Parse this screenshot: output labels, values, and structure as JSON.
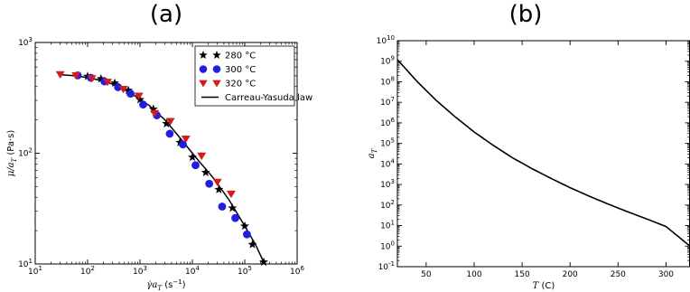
{
  "chart_data": [
    {
      "panel_label": "(a)",
      "type": "scatter",
      "xscale": "log",
      "yscale": "log",
      "xlim": [
        10,
        1000000
      ],
      "ylim": [
        10,
        1000
      ],
      "xlabel": {
        "math": "γ̇a",
        "sub": "T",
        "unit_open": " (s",
        "unit_exp": "−1",
        "unit_close": ")"
      },
      "ylabel": {
        "math": "μ/a",
        "sub": "T",
        "unit": " (Pa·s)"
      },
      "x_ticks": [
        {
          "base": "10",
          "exp": "1"
        },
        {
          "base": "10",
          "exp": "2"
        },
        {
          "base": "10",
          "exp": "3"
        },
        {
          "base": "10",
          "exp": "4"
        },
        {
          "base": "10",
          "exp": "5"
        },
        {
          "base": "10",
          "exp": "6"
        }
      ],
      "y_ticks": [
        {
          "base": "10",
          "exp": "1"
        },
        {
          "base": "10",
          "exp": "2"
        },
        {
          "base": "10",
          "exp": "3"
        }
      ],
      "legend_position": "top-right",
      "series": [
        {
          "name": "280 °C",
          "marker": "star",
          "color": "#000000",
          "x": [
            100,
            180,
            330,
            600,
            1000,
            1800,
            3200,
            5800,
            10000,
            18000,
            32000,
            58000,
            100000,
            140000,
            230000
          ],
          "y": [
            495,
            470,
            430,
            370,
            305,
            250,
            185,
            125,
            92,
            67,
            47,
            32,
            22,
            15,
            10.4
          ]
        },
        {
          "name": "300 °C",
          "marker": "circle",
          "color": "#1f1fdd",
          "x": [
            65,
            115,
            210,
            380,
            660,
            1150,
            2100,
            3700,
            6600,
            11500,
            21000,
            37000,
            66000,
            110000
          ],
          "y": [
            505,
            480,
            445,
            395,
            345,
            275,
            220,
            150,
            120,
            78,
            53,
            33,
            26,
            18.5
          ]
        },
        {
          "name": "320 °C",
          "marker": "triangle-down",
          "color": "#d41c1c",
          "x": [
            30,
            60,
            120,
            240,
            480,
            950,
            1900,
            3800,
            7500,
            15000,
            30000,
            55000
          ],
          "y": [
            515,
            505,
            475,
            440,
            380,
            330,
            230,
            195,
            135,
            95,
            55,
            43
          ]
        },
        {
          "name": "Carreau-Yasuda law",
          "marker": "line",
          "color": "#000000",
          "x": [
            30,
            60,
            100,
            200,
            400,
            800,
            1500,
            3000,
            6000,
            12000,
            25000,
            50000,
            100000,
            160000,
            230000
          ],
          "y": [
            512,
            500,
            482,
            450,
            400,
            330,
            270,
            200,
            135,
            90,
            60,
            38,
            22,
            15,
            10.4
          ]
        }
      ]
    },
    {
      "panel_label": "(b)",
      "type": "line",
      "xscale": "linear",
      "yscale": "log",
      "xlim": [
        20,
        325
      ],
      "ylim": [
        0.1,
        10000000000
      ],
      "xlabel": {
        "math": "T",
        "unit": " (C)"
      },
      "ylabel": {
        "math": "a",
        "sub": "T"
      },
      "x_ticks": [
        "50",
        "100",
        "150",
        "200",
        "250",
        "300"
      ],
      "y_ticks": [
        {
          "base": "10",
          "exp": "-1"
        },
        {
          "base": "10",
          "exp": "0"
        },
        {
          "base": "10",
          "exp": "1"
        },
        {
          "base": "10",
          "exp": "2"
        },
        {
          "base": "10",
          "exp": "3"
        },
        {
          "base": "10",
          "exp": "4"
        },
        {
          "base": "10",
          "exp": "5"
        },
        {
          "base": "10",
          "exp": "6"
        },
        {
          "base": "10",
          "exp": "7"
        },
        {
          "base": "10",
          "exp": "8"
        },
        {
          "base": "10",
          "exp": "9"
        },
        {
          "base": "10",
          "exp": "10"
        }
      ],
      "series": [
        {
          "marker": "line",
          "color": "#000000",
          "x": [
            20,
            40,
            60,
            80,
            100,
            120,
            140,
            160,
            180,
            200,
            220,
            240,
            260,
            280,
            300,
            325
          ],
          "y": [
            1200000000.0,
            110000000.0,
            13000000.0,
            2000000.0,
            360000.0,
            80000.0,
            20000.0,
            6000.0,
            2000.0,
            700.0,
            270.0,
            110.0,
            47.0,
            21.0,
            9.0,
            1.0
          ]
        }
      ]
    }
  ]
}
